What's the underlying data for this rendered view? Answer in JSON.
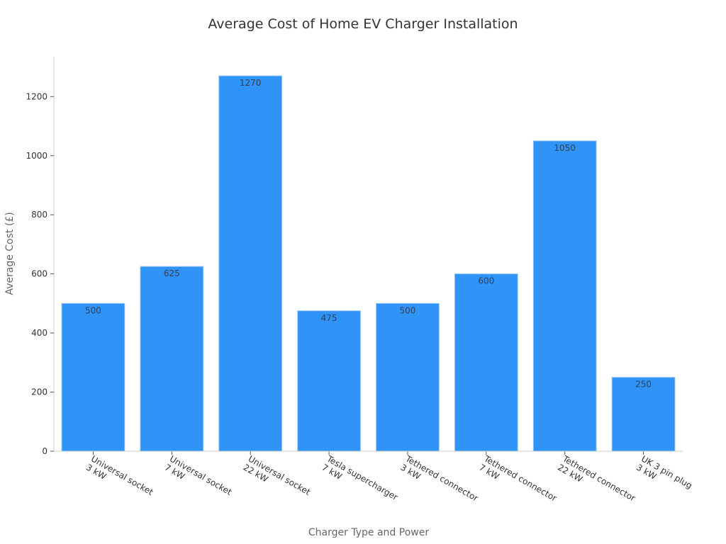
{
  "chart_data": {
    "type": "bar",
    "title": "Average Cost of Home EV Charger Installation",
    "xlabel": "Charger Type and Power",
    "ylabel": "Average Cost (£)",
    "categories": [
      [
        "Universal socket",
        "3 kW"
      ],
      [
        "Universal socket",
        "7 kW"
      ],
      [
        "Universal socket",
        "22 kW"
      ],
      [
        "Tesla supercharger",
        "7 kW"
      ],
      [
        "Tethered connector",
        "3 kW"
      ],
      [
        "Tethered connector",
        "7 kW"
      ],
      [
        "Tethered connector",
        "22 kW"
      ],
      [
        "UK 3 pin plug",
        "3 kW"
      ]
    ],
    "values": [
      500,
      625,
      1270,
      475,
      500,
      600,
      1050,
      250
    ],
    "ylim": [
      0,
      1335
    ],
    "yticks": [
      0,
      200,
      400,
      600,
      800,
      1000,
      1200
    ],
    "grid": false,
    "legend": "none",
    "bar_color": "#3093F8",
    "bar_edge_color": "#8EC3F5"
  }
}
